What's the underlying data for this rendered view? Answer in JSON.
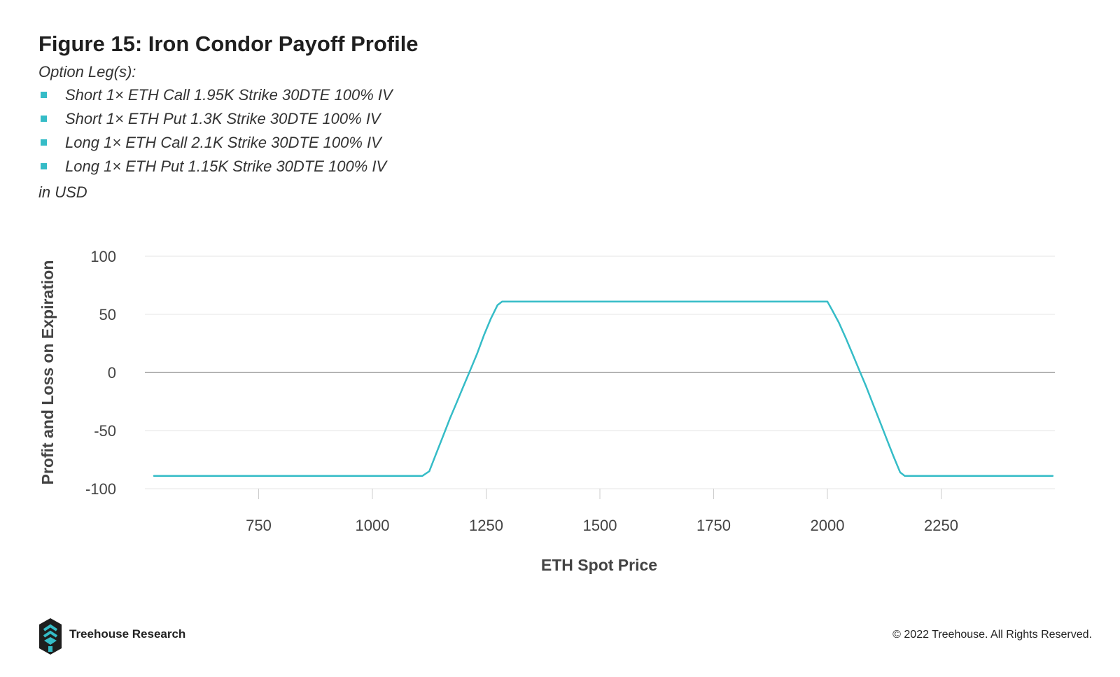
{
  "header": {
    "title": "Figure 15: Iron Condor Payoff Profile",
    "subtitle": "Option Leg(s):",
    "legs": [
      "Short 1× ETH Call 1.95K Strike 30DTE 100% IV",
      "Short 1× ETH Put 1.3K Strike 30DTE 100% IV",
      "Long 1× ETH Call 2.1K Strike 30DTE 100% IV",
      "Long 1× ETH Put 1.15K Strike 30DTE 100% IV"
    ],
    "unit": "in USD"
  },
  "colors": {
    "line": "#35bcc7",
    "bullet": "#35bcc7",
    "grid": "#e6e6e6",
    "zero_line": "#888888"
  },
  "chart_data": {
    "type": "line",
    "title": "Figure 15: Iron Condor Payoff Profile",
    "xlabel": "ETH Spot Price",
    "ylabel": "Profit and Loss on Expiration",
    "xlim": [
      500,
      2500
    ],
    "ylim": [
      -100,
      100
    ],
    "xticks": [
      750,
      1000,
      1250,
      1500,
      1750,
      2000,
      2250
    ],
    "yticks": [
      100,
      50,
      0,
      -50,
      -100
    ],
    "grid": true,
    "legend": "none",
    "series": [
      {
        "x": [
          520,
          1000,
          1110,
          1125,
          1140,
          1155,
          1170,
          1185,
          1200,
          1215,
          1230,
          1245,
          1260,
          1275,
          1285,
          1500,
          1800,
          2000,
          2010,
          2025,
          2040,
          2055,
          2070,
          2085,
          2100,
          2115,
          2130,
          2145,
          2160,
          2170,
          2300,
          2495
        ],
        "y": [
          -89,
          -89,
          -89,
          -85,
          -70,
          -55,
          -40,
          -26,
          -12,
          2,
          16,
          32,
          46,
          58,
          61,
          61,
          61,
          61,
          54,
          43,
          30,
          16,
          2,
          -12,
          -27,
          -42,
          -57,
          -72,
          -86,
          -89,
          -89,
          -89
        ]
      }
    ]
  },
  "footer": {
    "brand": "Treehouse Research",
    "copyright": "© 2022 Treehouse. All Rights Reserved."
  }
}
